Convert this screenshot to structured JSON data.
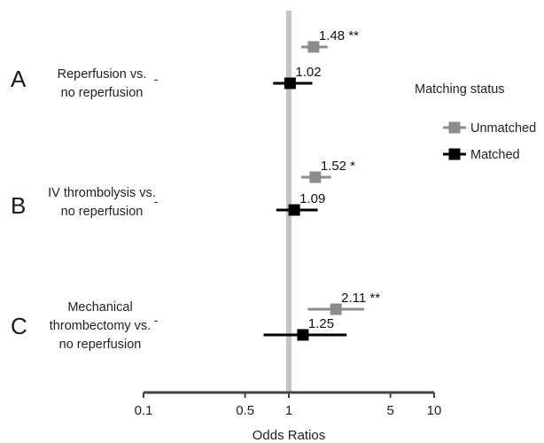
{
  "chart_data": {
    "type": "forest",
    "xlabel": "Odds Ratios",
    "x_scale": "log",
    "xlim": [
      0.1,
      10
    ],
    "x_ticks": [
      0.1,
      0.5,
      1,
      5,
      10
    ],
    "x_tick_labels": [
      "0.1",
      "0.5",
      "1",
      "5",
      "10"
    ],
    "reference_line": 1,
    "legend": {
      "title": "Matching status",
      "placement": "right",
      "entries": [
        {
          "name": "Unmatched",
          "color": "#8c8c8c"
        },
        {
          "name": "Matched",
          "color": "#000000"
        }
      ]
    },
    "groups": [
      {
        "letter": "A",
        "label_lines": [
          "Reperfusion vs.",
          "no reperfusion"
        ],
        "ytick": "-",
        "estimates": [
          {
            "series": "Unmatched",
            "or": 1.48,
            "ci": [
              1.22,
              1.85
            ],
            "label": "1.48 **"
          },
          {
            "series": "Matched",
            "or": 1.02,
            "ci": [
              0.78,
              1.45
            ],
            "label": "1.02"
          }
        ]
      },
      {
        "letter": "B",
        "label_lines": [
          "IV thrombolysis vs.",
          "no reperfusion"
        ],
        "ytick": "-",
        "estimates": [
          {
            "series": "Unmatched",
            "or": 1.52,
            "ci": [
              1.22,
              1.95
            ],
            "label": "1.52 *"
          },
          {
            "series": "Matched",
            "or": 1.09,
            "ci": [
              0.82,
              1.58
            ],
            "label": "1.09"
          }
        ]
      },
      {
        "letter": "C",
        "label_lines": [
          "Mechanical",
          "thrombectomy vs.",
          "no reperfusion"
        ],
        "ytick": "-",
        "estimates": [
          {
            "series": "Unmatched",
            "or": 2.11,
            "ci": [
              1.35,
              3.3
            ],
            "label": "2.11 **"
          },
          {
            "series": "Matched",
            "or": 1.25,
            "ci": [
              0.67,
              2.5
            ],
            "label": "1.25"
          }
        ]
      }
    ]
  }
}
